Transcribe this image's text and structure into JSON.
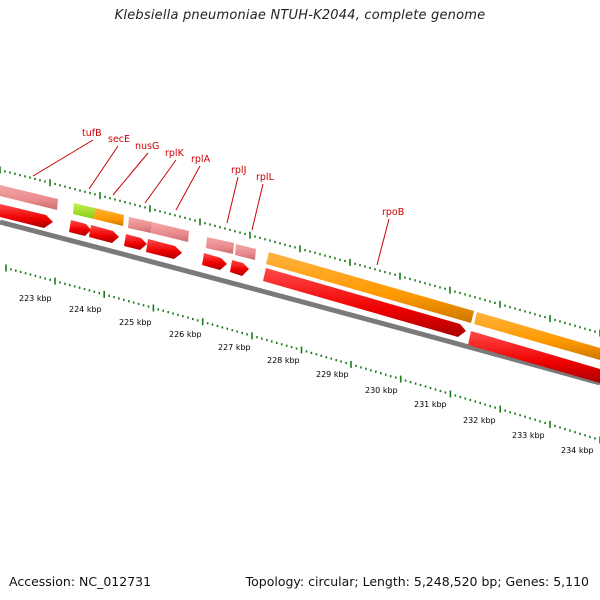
{
  "title": "Klebsiella pneumoniae NTUH-K2044, complete genome",
  "footer": {
    "accession": "Accession: NC_012731",
    "summary": "Topology: circular; Length: 5,248,520 bp; Genes: 5,110"
  },
  "colors": {
    "background": "#ffffff",
    "cds": "#ff0000",
    "gene_pink": "#e98a8c",
    "gene_orange": "#ff9900",
    "gene_green": "#99dd22",
    "backbone": "#808080",
    "ticks": "#1a7a1a",
    "gene_labels": "#cc0000",
    "kbp_labels": "#000000"
  },
  "genes": [
    {
      "label": "tufB",
      "kind": "rRNA-like"
    },
    {
      "label": "secE",
      "kind": "green"
    },
    {
      "label": "nusG",
      "kind": "orange"
    },
    {
      "label": "rplK",
      "kind": "pink"
    },
    {
      "label": "rplA",
      "kind": "pink"
    },
    {
      "label": "rplJ",
      "kind": "pink"
    },
    {
      "label": "rplL",
      "kind": "pink"
    },
    {
      "label": "rpoB",
      "kind": "orange"
    }
  ],
  "scale_labels": [
    "223 kbp",
    "224 kbp",
    "225 kbp",
    "226 kbp",
    "227 kbp",
    "228 kbp",
    "229 kbp",
    "230 kbp",
    "231 kbp",
    "232 kbp",
    "233 kbp",
    "234 kbp"
  ]
}
